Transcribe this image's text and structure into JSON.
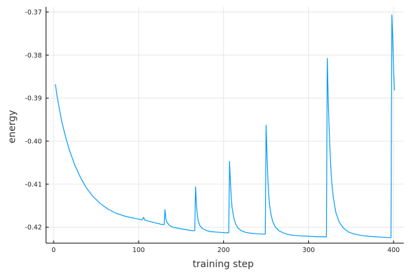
{
  "chart_data": {
    "type": "line",
    "xlabel": "training step",
    "ylabel": "energy",
    "xlim": [
      -9,
      412
    ],
    "ylim": [
      -0.4237,
      -0.3688
    ],
    "grid": true,
    "legend": "none",
    "line_color": "#009af9",
    "x_ticks": [
      {
        "value": 0,
        "label": "0"
      },
      {
        "value": 100,
        "label": "100"
      },
      {
        "value": 200,
        "label": "200"
      },
      {
        "value": 300,
        "label": "300"
      },
      {
        "value": 400,
        "label": "400"
      }
    ],
    "y_ticks": [
      {
        "value": -0.42,
        "label": "-0.42"
      },
      {
        "value": -0.41,
        "label": "-0.41"
      },
      {
        "value": -0.4,
        "label": "-0.40"
      },
      {
        "value": -0.39,
        "label": "-0.39"
      },
      {
        "value": -0.38,
        "label": "-0.38"
      },
      {
        "value": -0.37,
        "label": "-0.37"
      }
    ],
    "series": [
      {
        "x": [
          2,
          4,
          7,
          10,
          14,
          19,
          25,
          31,
          38,
          46,
          55,
          64,
          74,
          85,
          95,
          104,
          106,
          107,
          110,
          116,
          122,
          126,
          130,
          131,
          132,
          133,
          134,
          136,
          139,
          143,
          148,
          154,
          160,
          163,
          166,
          167,
          168,
          169,
          170,
          172,
          175,
          179,
          184,
          190,
          197,
          203,
          206,
          207,
          208,
          209,
          210,
          212,
          214,
          217,
          221,
          226,
          232,
          239,
          245,
          249,
          250,
          251,
          252,
          253,
          254,
          256,
          258,
          261,
          265,
          270,
          276,
          283,
          291,
          300,
          310,
          318,
          321,
          322,
          323,
          324,
          325,
          326,
          327,
          329,
          332,
          336,
          341,
          347,
          354,
          362,
          370,
          378,
          386,
          394,
          397,
          398,
          399,
          400,
          401
        ],
        "values": [
          -0.3868,
          -0.3895,
          -0.3928,
          -0.3958,
          -0.399,
          -0.4024,
          -0.4056,
          -0.4082,
          -0.4107,
          -0.4128,
          -0.4145,
          -0.4158,
          -0.4168,
          -0.4175,
          -0.4179,
          -0.4183,
          -0.4177,
          -0.4183,
          -0.4185,
          -0.4188,
          -0.4191,
          -0.4193,
          -0.4194,
          -0.4159,
          -0.418,
          -0.4187,
          -0.419,
          -0.4195,
          -0.4199,
          -0.4201,
          -0.4203,
          -0.4205,
          -0.4207,
          -0.4208,
          -0.4208,
          -0.4106,
          -0.4145,
          -0.417,
          -0.4184,
          -0.4196,
          -0.4203,
          -0.4207,
          -0.421,
          -0.4211,
          -0.4212,
          -0.4213,
          -0.4213,
          -0.4047,
          -0.4095,
          -0.413,
          -0.4155,
          -0.4178,
          -0.4192,
          -0.4202,
          -0.4208,
          -0.4212,
          -0.4214,
          -0.4215,
          -0.4216,
          -0.4216,
          -0.3963,
          -0.403,
          -0.4085,
          -0.412,
          -0.4148,
          -0.4172,
          -0.4188,
          -0.42,
          -0.4208,
          -0.4213,
          -0.4217,
          -0.4219,
          -0.422,
          -0.4221,
          -0.4222,
          -0.4222,
          -0.4222,
          -0.3808,
          -0.3895,
          -0.396,
          -0.401,
          -0.4055,
          -0.409,
          -0.413,
          -0.4165,
          -0.4188,
          -0.4202,
          -0.4211,
          -0.4216,
          -0.4219,
          -0.4221,
          -0.4222,
          -0.4223,
          -0.4224,
          -0.4224,
          -0.3707,
          -0.376,
          -0.383,
          -0.3882
        ]
      }
    ]
  }
}
